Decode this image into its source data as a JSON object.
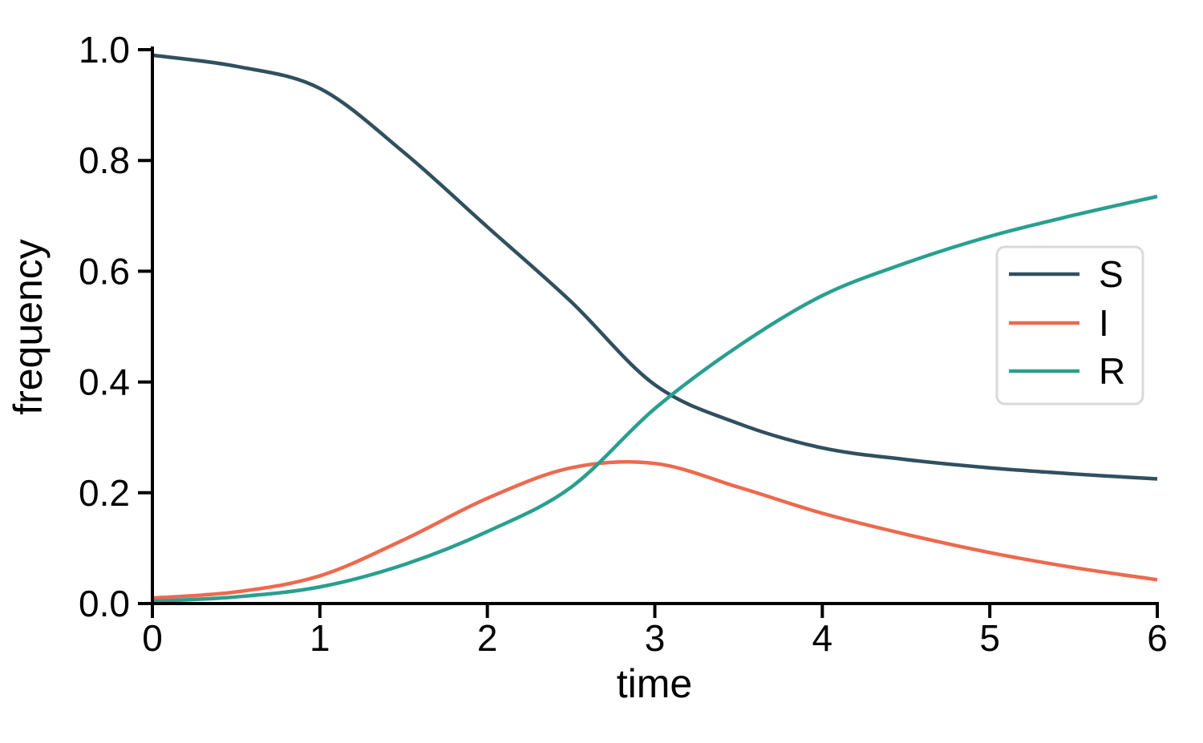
{
  "background_color": "#ffffff",
  "axis_color": "#000000",
  "chart_data": {
    "type": "line",
    "title": "",
    "xlabel": "time",
    "ylabel": "frequency",
    "xlim": [
      0,
      6
    ],
    "ylim": [
      0.0,
      1.0
    ],
    "grid": false,
    "x_ticks": [
      0,
      1,
      2,
      3,
      4,
      5,
      6
    ],
    "x_tick_labels": [
      "0",
      "1",
      "2",
      "3",
      "4",
      "5",
      "6"
    ],
    "y_ticks": [
      0.0,
      0.2,
      0.4,
      0.6,
      0.8,
      1.0
    ],
    "y_tick_labels": [
      "0.0",
      "0.2",
      "0.4",
      "0.6",
      "0.8",
      "1.0"
    ],
    "x": [
      0.0,
      0.5,
      1.0,
      1.5,
      2.0,
      2.5,
      3.0,
      3.5,
      4.0,
      4.5,
      5.0,
      5.5,
      6.0
    ],
    "series": [
      {
        "name": "S",
        "color": "#30505E",
        "values": [
          0.99,
          0.97,
          0.93,
          0.815,
          0.68,
          0.545,
          0.395,
          0.325,
          0.281,
          0.26,
          0.245,
          0.234,
          0.225
        ]
      },
      {
        "name": "I",
        "color": "#EC6A4F",
        "values": [
          0.01,
          0.021,
          0.05,
          0.115,
          0.19,
          0.245,
          0.253,
          0.21,
          0.163,
          0.125,
          0.092,
          0.065,
          0.043
        ]
      },
      {
        "name": "R",
        "color": "#2A9F8F",
        "values": [
          0.004,
          0.012,
          0.03,
          0.07,
          0.13,
          0.21,
          0.352,
          0.465,
          0.556,
          0.615,
          0.663,
          0.701,
          0.735
        ]
      }
    ],
    "legend": {
      "position": "right-center",
      "border_color": "#D9D9D9",
      "fill_color": "#FFFFFF",
      "entries": [
        "S",
        "I",
        "R"
      ]
    }
  }
}
